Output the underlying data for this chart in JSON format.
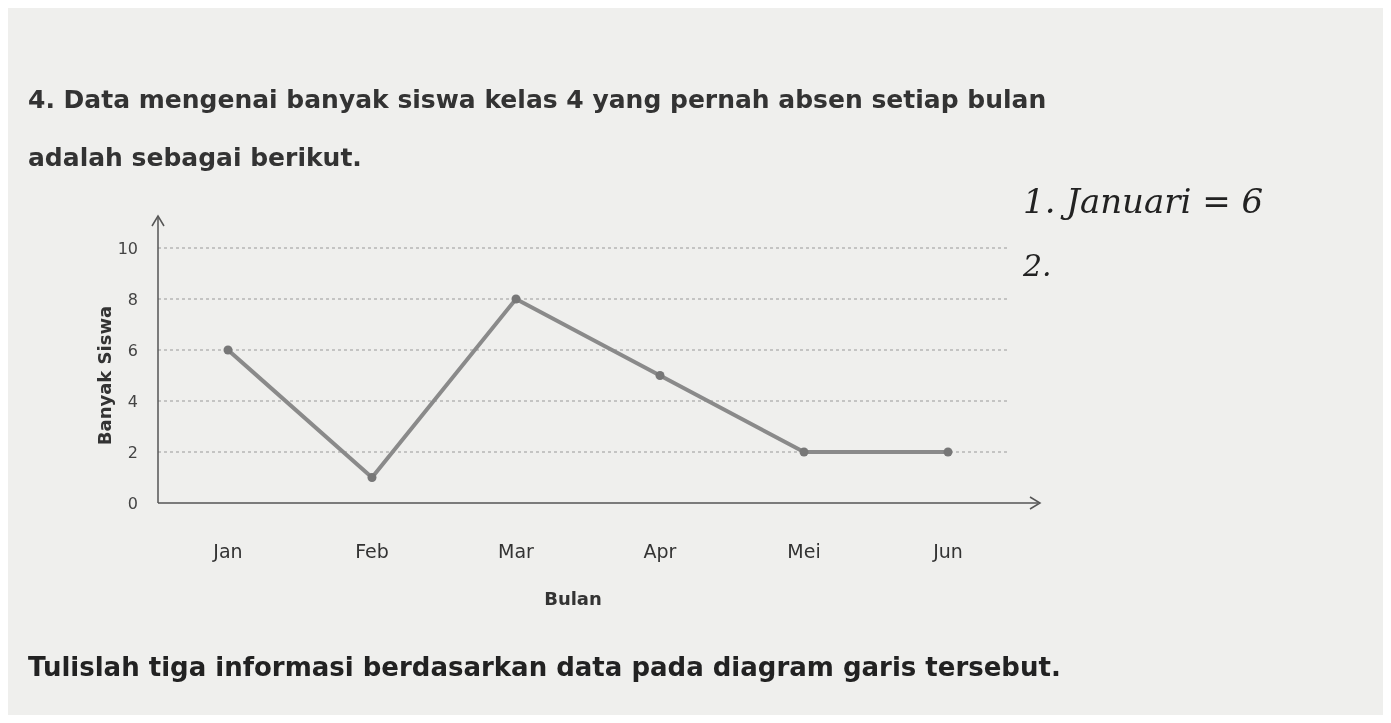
{
  "chart_data": {
    "type": "line",
    "title": "4. Data mengenai banyak siswa kelas 4 yang pernah absen setiap bulan adalah sebagai berikut.",
    "xlabel": "Bulan",
    "ylabel": "Banyak Siswa",
    "categories": [
      "Jan",
      "Feb",
      "Mar",
      "Apr",
      "Mei",
      "Jun"
    ],
    "series": [
      {
        "color": "#8a8a8a",
        "values": [
          6,
          1,
          8,
          5,
          2,
          2
        ]
      }
    ],
    "ylim": [
      0,
      10
    ],
    "yticks": [
      0,
      2,
      4,
      6,
      8,
      10
    ],
    "grid": "y",
    "marker": "circle",
    "line_style": "solid",
    "annotations": [
      "1. Januari = 6",
      "2.",
      "Tulislah tiga informasi berdasarkan data pada diagram garis tersebut."
    ]
  }
}
